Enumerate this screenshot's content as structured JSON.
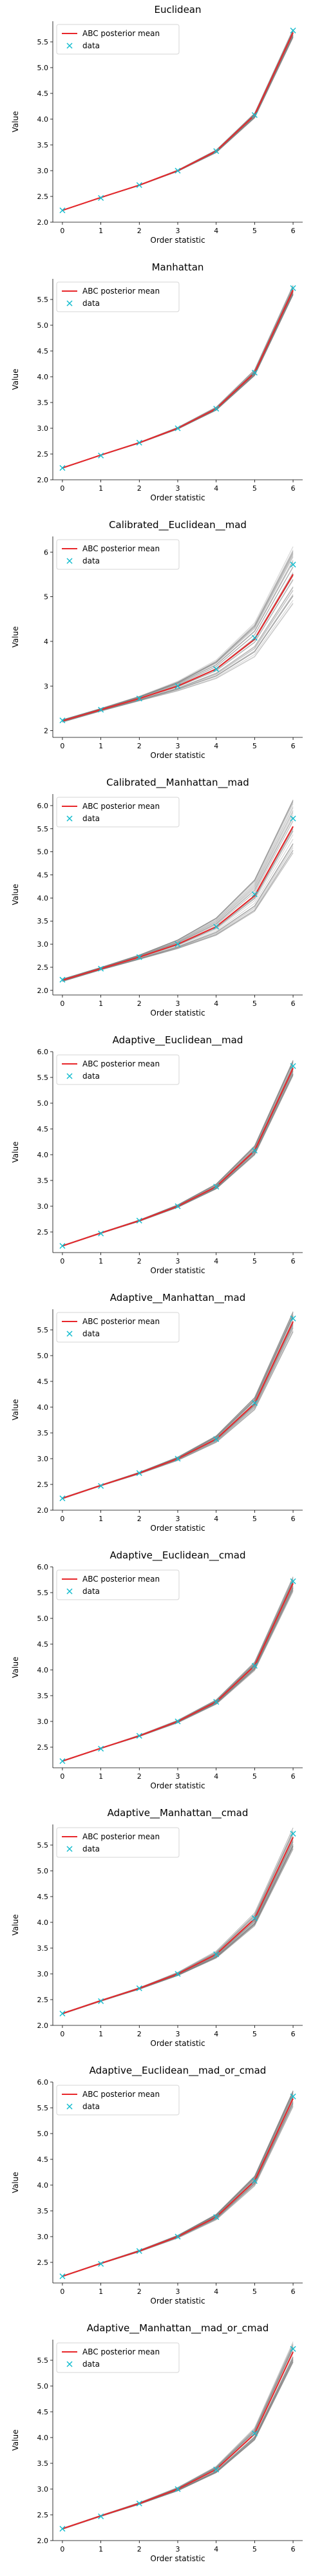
{
  "figure": {
    "legend_labels": [
      "ABC posterior mean",
      "data"
    ]
  },
  "colors": {
    "mean_line": "#e8262a",
    "data_marker": "#17becf",
    "samples": "#7f7f7f"
  },
  "chart_data": [
    {
      "type": "line",
      "title": "Euclidean",
      "xlabel": "Order statistic",
      "ylabel": "Value",
      "x": [
        0,
        1,
        2,
        3,
        4,
        5,
        6
      ],
      "xticks": [
        0,
        1,
        2,
        3,
        4,
        5,
        6
      ],
      "ylim": [
        2.0,
        5.9
      ],
      "yticks": [
        2.0,
        2.5,
        3.0,
        3.5,
        4.0,
        4.5,
        5.0,
        5.5
      ],
      "yticklabels": [
        "2.0",
        "2.5",
        "3.0",
        "3.5",
        "4.0",
        "4.5",
        "5.0",
        "5.5"
      ],
      "legend": "top-left",
      "grid": false,
      "sample_spread": 0.03,
      "series": [
        {
          "name": "ABC posterior mean",
          "values": [
            2.23,
            2.48,
            2.72,
            3.0,
            3.38,
            4.08,
            5.68
          ]
        },
        {
          "name": "data",
          "values": [
            2.23,
            2.47,
            2.72,
            3.0,
            3.38,
            4.08,
            5.72
          ]
        }
      ]
    },
    {
      "type": "line",
      "title": "Manhattan",
      "xlabel": "Order statistic",
      "ylabel": "Value",
      "x": [
        0,
        1,
        2,
        3,
        4,
        5,
        6
      ],
      "xticks": [
        0,
        1,
        2,
        3,
        4,
        5,
        6
      ],
      "ylim": [
        2.0,
        5.9
      ],
      "yticks": [
        2.0,
        2.5,
        3.0,
        3.5,
        4.0,
        4.5,
        5.0,
        5.5
      ],
      "yticklabels": [
        "2.0",
        "2.5",
        "3.0",
        "3.5",
        "4.0",
        "4.5",
        "5.0",
        "5.5"
      ],
      "legend": "top-left",
      "grid": false,
      "sample_spread": 0.03,
      "series": [
        {
          "name": "ABC posterior mean",
          "values": [
            2.23,
            2.48,
            2.72,
            3.0,
            3.38,
            4.08,
            5.68
          ]
        },
        {
          "name": "data",
          "values": [
            2.23,
            2.47,
            2.72,
            3.0,
            3.38,
            4.08,
            5.72
          ]
        }
      ]
    },
    {
      "type": "line",
      "title": "Calibrated__Euclidean__mad",
      "xlabel": "Order statistic",
      "ylabel": "Value",
      "x": [
        0,
        1,
        2,
        3,
        4,
        5,
        6
      ],
      "xticks": [
        0,
        1,
        2,
        3,
        4,
        5,
        6
      ],
      "ylim": [
        1.85,
        6.35
      ],
      "yticks": [
        2,
        3,
        4,
        5,
        6
      ],
      "yticklabels": [
        "2",
        "3",
        "4",
        "5",
        "6"
      ],
      "legend": "top-left",
      "grid": false,
      "sample_spread": 0.2,
      "series": [
        {
          "name": "ABC posterior mean",
          "values": [
            2.22,
            2.47,
            2.72,
            3.0,
            3.38,
            4.05,
            5.5
          ]
        },
        {
          "name": "data",
          "values": [
            2.23,
            2.47,
            2.72,
            3.0,
            3.38,
            4.08,
            5.72
          ]
        }
      ]
    },
    {
      "type": "line",
      "title": "Calibrated__Manhattan__mad",
      "xlabel": "Order statistic",
      "ylabel": "Value",
      "x": [
        0,
        1,
        2,
        3,
        4,
        5,
        6
      ],
      "xticks": [
        0,
        1,
        2,
        3,
        4,
        5,
        6
      ],
      "ylim": [
        1.9,
        6.25
      ],
      "yticks": [
        2.0,
        2.5,
        3.0,
        3.5,
        4.0,
        4.5,
        5.0,
        5.5,
        6.0
      ],
      "yticklabels": [
        "2.0",
        "2.5",
        "3.0",
        "3.5",
        "4.0",
        "4.5",
        "5.0",
        "5.5",
        "6.0"
      ],
      "legend": "top-left",
      "grid": false,
      "sample_spread": 0.18,
      "series": [
        {
          "name": "ABC posterior mean",
          "values": [
            2.22,
            2.47,
            2.72,
            3.0,
            3.38,
            4.05,
            5.55
          ]
        },
        {
          "name": "data",
          "values": [
            2.23,
            2.47,
            2.72,
            3.0,
            3.38,
            4.08,
            5.72
          ]
        }
      ]
    },
    {
      "type": "line",
      "title": "Adaptive__Euclidean__mad",
      "xlabel": "Order statistic",
      "ylabel": "Value",
      "x": [
        0,
        1,
        2,
        3,
        4,
        5,
        6
      ],
      "xticks": [
        0,
        1,
        2,
        3,
        4,
        5,
        6
      ],
      "ylim": [
        2.1,
        6.0
      ],
      "yticks": [
        2.5,
        3.0,
        3.5,
        4.0,
        4.5,
        5.0,
        5.5,
        6.0
      ],
      "yticklabels": [
        "2.5",
        "3.0",
        "3.5",
        "4.0",
        "4.5",
        "5.0",
        "5.5",
        "6.0"
      ],
      "legend": "top-left",
      "grid": false,
      "sample_spread": 0.05,
      "series": [
        {
          "name": "ABC posterior mean",
          "values": [
            2.23,
            2.48,
            2.72,
            3.0,
            3.38,
            4.08,
            5.68
          ]
        },
        {
          "name": "data",
          "values": [
            2.23,
            2.47,
            2.72,
            3.0,
            3.38,
            4.08,
            5.72
          ]
        }
      ]
    },
    {
      "type": "line",
      "title": "Adaptive__Manhattan__mad",
      "xlabel": "Order statistic",
      "ylabel": "Value",
      "x": [
        0,
        1,
        2,
        3,
        4,
        5,
        6
      ],
      "xticks": [
        0,
        1,
        2,
        3,
        4,
        5,
        6
      ],
      "ylim": [
        2.0,
        5.9
      ],
      "yticks": [
        2.0,
        2.5,
        3.0,
        3.5,
        4.0,
        4.5,
        5.0,
        5.5
      ],
      "yticklabels": [
        "2.0",
        "2.5",
        "3.0",
        "3.5",
        "4.0",
        "4.5",
        "5.0",
        "5.5"
      ],
      "legend": "top-left",
      "grid": false,
      "sample_spread": 0.06,
      "series": [
        {
          "name": "ABC posterior mean",
          "values": [
            2.23,
            2.48,
            2.72,
            3.0,
            3.38,
            4.07,
            5.66
          ]
        },
        {
          "name": "data",
          "values": [
            2.23,
            2.47,
            2.72,
            3.0,
            3.38,
            4.08,
            5.72
          ]
        }
      ]
    },
    {
      "type": "line",
      "title": "Adaptive__Euclidean__cmad",
      "xlabel": "Order statistic",
      "ylabel": "Value",
      "x": [
        0,
        1,
        2,
        3,
        4,
        5,
        6
      ],
      "xticks": [
        0,
        1,
        2,
        3,
        4,
        5,
        6
      ],
      "ylim": [
        2.1,
        6.0
      ],
      "yticks": [
        2.5,
        3.0,
        3.5,
        4.0,
        4.5,
        5.0,
        5.5,
        6.0
      ],
      "yticklabels": [
        "2.5",
        "3.0",
        "3.5",
        "4.0",
        "4.5",
        "5.0",
        "5.5",
        "6.0"
      ],
      "legend": "top-left",
      "grid": false,
      "sample_spread": 0.05,
      "series": [
        {
          "name": "ABC posterior mean",
          "values": [
            2.23,
            2.48,
            2.72,
            3.0,
            3.38,
            4.08,
            5.68
          ]
        },
        {
          "name": "data",
          "values": [
            2.23,
            2.47,
            2.72,
            3.0,
            3.38,
            4.08,
            5.72
          ]
        }
      ]
    },
    {
      "type": "line",
      "title": "Adaptive__Manhattan__cmad",
      "xlabel": "Order statistic",
      "ylabel": "Value",
      "x": [
        0,
        1,
        2,
        3,
        4,
        5,
        6
      ],
      "xticks": [
        0,
        1,
        2,
        3,
        4,
        5,
        6
      ],
      "ylim": [
        2.0,
        5.9
      ],
      "yticks": [
        2.0,
        2.5,
        3.0,
        3.5,
        4.0,
        4.5,
        5.0,
        5.5
      ],
      "yticklabels": [
        "2.0",
        "2.5",
        "3.0",
        "3.5",
        "4.0",
        "4.5",
        "5.0",
        "5.5"
      ],
      "legend": "top-left",
      "grid": false,
      "sample_spread": 0.07,
      "series": [
        {
          "name": "ABC posterior mean",
          "values": [
            2.23,
            2.48,
            2.72,
            3.0,
            3.38,
            4.07,
            5.65
          ]
        },
        {
          "name": "data",
          "values": [
            2.23,
            2.47,
            2.72,
            3.0,
            3.38,
            4.08,
            5.72
          ]
        }
      ]
    },
    {
      "type": "line",
      "title": "Adaptive__Euclidean__mad_or_cmad",
      "xlabel": "Order statistic",
      "ylabel": "Value",
      "x": [
        0,
        1,
        2,
        3,
        4,
        5,
        6
      ],
      "xticks": [
        0,
        1,
        2,
        3,
        4,
        5,
        6
      ],
      "ylim": [
        2.1,
        6.0
      ],
      "yticks": [
        2.5,
        3.0,
        3.5,
        4.0,
        4.5,
        5.0,
        5.5,
        6.0
      ],
      "yticklabels": [
        "2.5",
        "3.0",
        "3.5",
        "4.0",
        "4.5",
        "5.0",
        "5.5",
        "6.0"
      ],
      "legend": "top-left",
      "grid": false,
      "sample_spread": 0.05,
      "series": [
        {
          "name": "ABC posterior mean",
          "values": [
            2.23,
            2.48,
            2.72,
            3.0,
            3.38,
            4.08,
            5.68
          ]
        },
        {
          "name": "data",
          "values": [
            2.23,
            2.47,
            2.72,
            3.0,
            3.38,
            4.08,
            5.72
          ]
        }
      ]
    },
    {
      "type": "line",
      "title": "Adaptive__Manhattan__mad_or_cmad",
      "xlabel": "Order statistic",
      "ylabel": "Value",
      "x": [
        0,
        1,
        2,
        3,
        4,
        5,
        6
      ],
      "xticks": [
        0,
        1,
        2,
        3,
        4,
        5,
        6
      ],
      "ylim": [
        2.0,
        5.9
      ],
      "yticks": [
        2.0,
        2.5,
        3.0,
        3.5,
        4.0,
        4.5,
        5.0,
        5.5
      ],
      "yticklabels": [
        "2.0",
        "2.5",
        "3.0",
        "3.5",
        "4.0",
        "4.5",
        "5.0",
        "5.5"
      ],
      "legend": "top-left",
      "grid": false,
      "sample_spread": 0.06,
      "series": [
        {
          "name": "ABC posterior mean",
          "values": [
            2.23,
            2.48,
            2.72,
            3.0,
            3.38,
            4.07,
            5.66
          ]
        },
        {
          "name": "data",
          "values": [
            2.23,
            2.47,
            2.72,
            3.0,
            3.38,
            4.08,
            5.72
          ]
        }
      ]
    }
  ]
}
